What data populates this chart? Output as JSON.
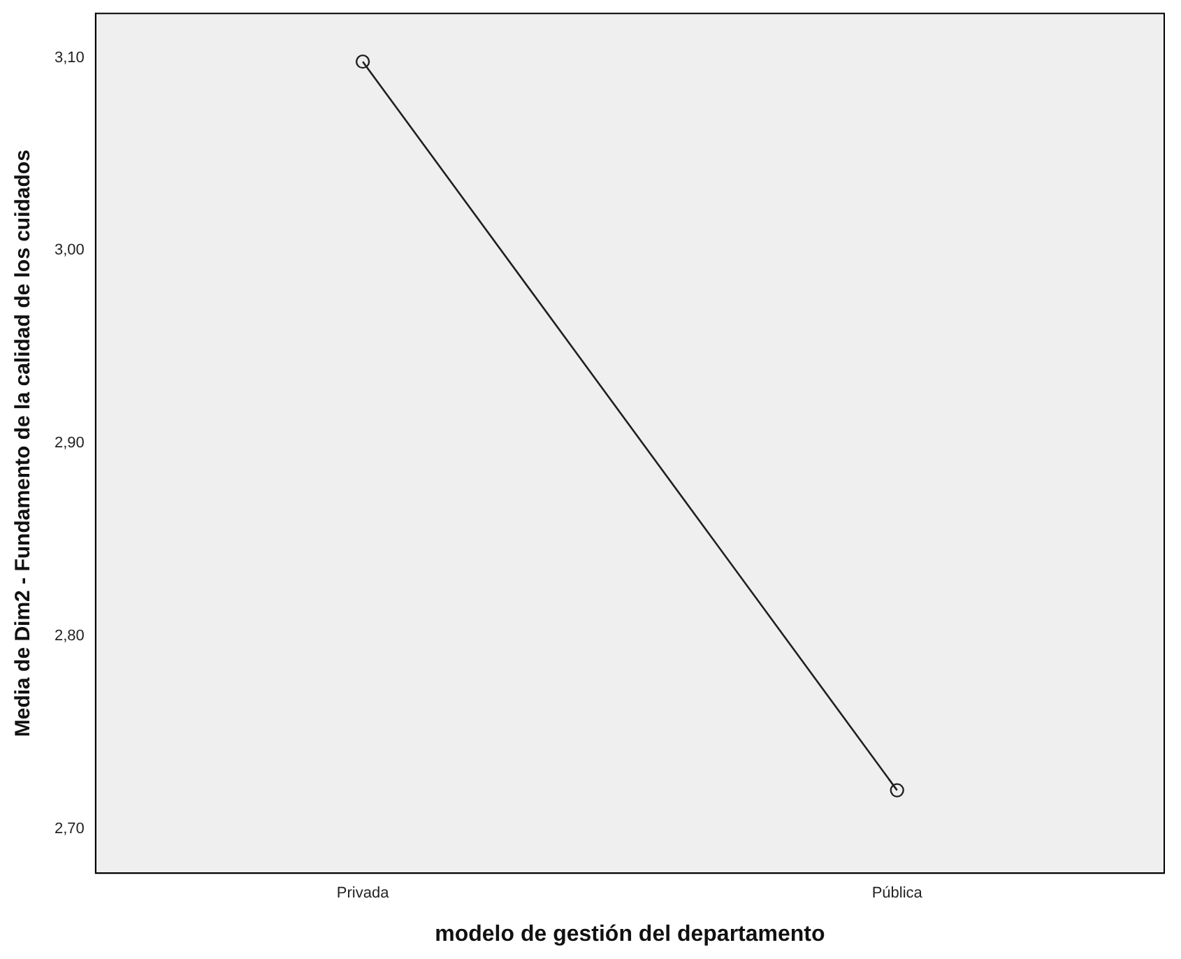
{
  "chart_data": {
    "type": "line",
    "xlabel": "modelo de gestión del departamento",
    "ylabel": "Media de Dim2 - Fundamento de la calidad de los cuidados",
    "categories": [
      "Privada",
      "Pública"
    ],
    "series": [
      {
        "color": "#1f1f1f",
        "values": [
          3.098,
          2.72
        ]
      }
    ],
    "ylim": [
      2.677,
      3.123
    ],
    "yticks": [
      {
        "value": 2.7,
        "label": "2,70"
      },
      {
        "value": 2.8,
        "label": "2,80"
      },
      {
        "value": 2.9,
        "label": "2,90"
      },
      {
        "value": 3.0,
        "label": "3,00"
      },
      {
        "value": 3.1,
        "label": "3,10"
      }
    ],
    "grid": false,
    "legend": false,
    "marker": "circle",
    "line_style": "solid"
  }
}
